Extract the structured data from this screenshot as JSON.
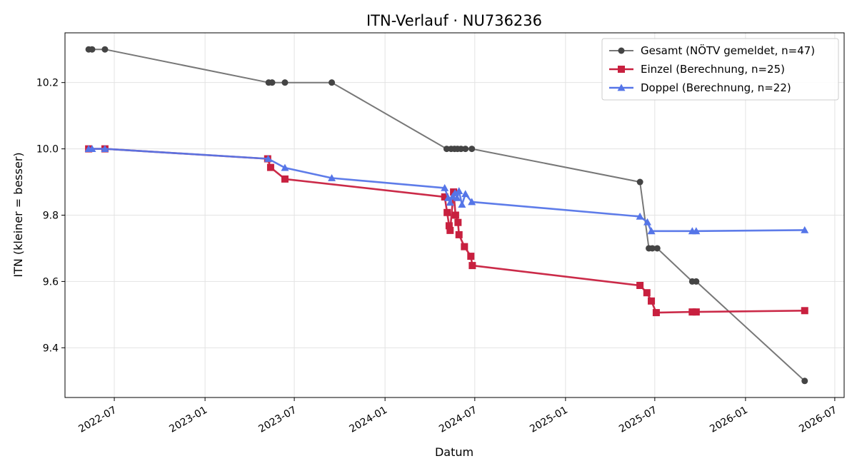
{
  "chart_data": {
    "type": "line",
    "title": "ITN-Verlauf · NU736236",
    "xlabel": "Datum",
    "ylabel": "ITN  (kleiner = besser)",
    "xlim": [
      "2022-03-23",
      "2026-07-20"
    ],
    "ylim": [
      9.25,
      10.35
    ],
    "x_ticks": [
      "2022-07",
      "2023-01",
      "2023-07",
      "2024-01",
      "2024-07",
      "2025-01",
      "2025-07",
      "2026-01",
      "2026-07"
    ],
    "y_ticks": [
      "9.4",
      "9.6",
      "9.8",
      "10.0",
      "10.2"
    ],
    "grid": true,
    "legend_position": "top-right",
    "series": [
      {
        "name": "Gesamt (NÖTV gemeldet, n=47)",
        "color": "#777777",
        "marker": "circle",
        "marker_color": "#444444",
        "points": [
          [
            "2022-05-10",
            10.3
          ],
          [
            "2022-05-17",
            10.3
          ],
          [
            "2022-06-12",
            10.3
          ],
          [
            "2023-05-10",
            10.2
          ],
          [
            "2023-05-17",
            10.2
          ],
          [
            "2023-06-12",
            10.2
          ],
          [
            "2023-09-15",
            10.2
          ],
          [
            "2024-05-05",
            10.0
          ],
          [
            "2024-05-14",
            10.0
          ],
          [
            "2024-05-21",
            10.0
          ],
          [
            "2024-05-27",
            10.0
          ],
          [
            "2024-06-03",
            10.0
          ],
          [
            "2024-06-12",
            10.0
          ],
          [
            "2024-06-25",
            10.0
          ],
          [
            "2025-06-01",
            9.9
          ],
          [
            "2025-06-19",
            9.7
          ],
          [
            "2025-06-26",
            9.7
          ],
          [
            "2025-07-06",
            9.7
          ],
          [
            "2025-09-15",
            9.6
          ],
          [
            "2025-09-23",
            9.6
          ],
          [
            "2026-05-01",
            9.3
          ]
        ]
      },
      {
        "name": "Einzel (Berechnung, n=25)",
        "color": "#c8203f",
        "marker": "square",
        "points": [
          [
            "2022-05-10",
            10.0
          ],
          [
            "2022-06-12",
            10.0
          ],
          [
            "2023-05-08",
            9.97
          ],
          [
            "2023-05-14",
            9.944
          ],
          [
            "2023-06-12",
            9.909
          ],
          [
            "2024-05-01",
            9.855
          ],
          [
            "2024-05-06",
            9.808
          ],
          [
            "2024-05-10",
            9.768
          ],
          [
            "2024-05-12",
            9.754
          ],
          [
            "2024-05-19",
            9.87
          ],
          [
            "2024-05-23",
            9.8
          ],
          [
            "2024-05-28",
            9.778
          ],
          [
            "2024-05-30",
            9.741
          ],
          [
            "2024-06-10",
            9.705
          ],
          [
            "2024-06-23",
            9.676
          ],
          [
            "2024-06-26",
            9.648
          ],
          [
            "2025-06-01",
            9.588
          ],
          [
            "2025-06-15",
            9.566
          ],
          [
            "2025-06-24",
            9.541
          ],
          [
            "2025-07-04",
            9.506
          ],
          [
            "2025-09-15",
            9.508
          ],
          [
            "2025-09-23",
            9.508
          ],
          [
            "2026-05-01",
            9.512
          ]
        ]
      },
      {
        "name": "Doppel (Berechnung, n=22)",
        "color": "#5575e8",
        "marker": "triangle",
        "points": [
          [
            "2022-05-10",
            10.0
          ],
          [
            "2022-05-17",
            10.0
          ],
          [
            "2022-06-12",
            10.0
          ],
          [
            "2023-05-09",
            9.97
          ],
          [
            "2023-06-12",
            9.943
          ],
          [
            "2023-09-15",
            9.912
          ],
          [
            "2024-05-01",
            9.882
          ],
          [
            "2024-05-08",
            9.852
          ],
          [
            "2024-05-12",
            9.838
          ],
          [
            "2024-05-17",
            9.856
          ],
          [
            "2024-05-22",
            9.867
          ],
          [
            "2024-05-26",
            9.852
          ],
          [
            "2024-05-30",
            9.873
          ],
          [
            "2024-06-05",
            9.832
          ],
          [
            "2024-06-12",
            9.864
          ],
          [
            "2024-06-25",
            9.84
          ],
          [
            "2025-06-01",
            9.796
          ],
          [
            "2025-06-16",
            9.779
          ],
          [
            "2025-06-24",
            9.752
          ],
          [
            "2025-09-15",
            9.752
          ],
          [
            "2025-09-23",
            9.752
          ],
          [
            "2026-05-01",
            9.755
          ]
        ]
      }
    ]
  }
}
